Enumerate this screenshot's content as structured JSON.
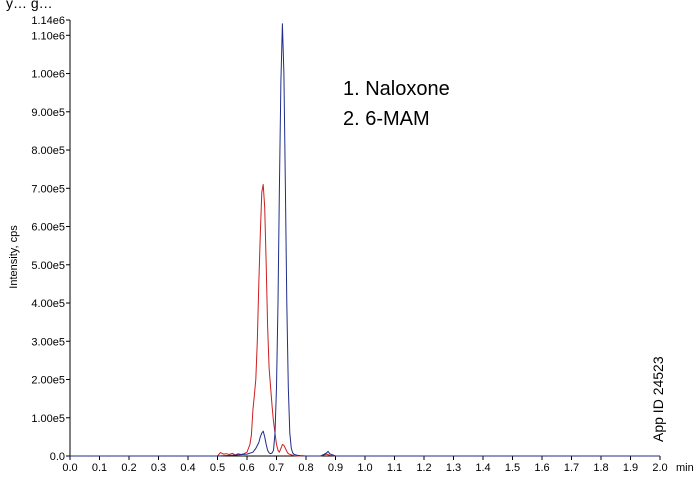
{
  "chart_data": {
    "type": "line",
    "header_text": "y… g…",
    "ylabel": "Intensity, cps",
    "x_unit_label": "min",
    "xlim": [
      0.0,
      2.0
    ],
    "ylim": [
      0,
      1140000
    ],
    "x_ticks": [
      "0.0",
      "0.1",
      "0.2",
      "0.3",
      "0.4",
      "0.5",
      "0.6",
      "0.7",
      "0.8",
      "0.9",
      "1.0",
      "1.1",
      "1.2",
      "1.3",
      "1.4",
      "1.5",
      "1.6",
      "1.7",
      "1.8",
      "1.9",
      "2.0"
    ],
    "y_ticks": [
      {
        "value": 0,
        "label": "0.0"
      },
      {
        "value": 100000,
        "label": "1.00e5"
      },
      {
        "value": 200000,
        "label": "2.00e5"
      },
      {
        "value": 300000,
        "label": "3.00e5"
      },
      {
        "value": 400000,
        "label": "4.00e5"
      },
      {
        "value": 500000,
        "label": "5.00e5"
      },
      {
        "value": 600000,
        "label": "6.00e5"
      },
      {
        "value": 700000,
        "label": "7.00e5"
      },
      {
        "value": 800000,
        "label": "8.00e5"
      },
      {
        "value": 900000,
        "label": "9.00e5"
      },
      {
        "value": 1000000,
        "label": "1.00e6"
      },
      {
        "value": 1100000,
        "label": "1.10e6"
      },
      {
        "value": 1140000,
        "label": "1.14e6"
      }
    ],
    "legend": [
      "1. Naloxone",
      "2. 6-MAM"
    ],
    "annotation": "App ID 24523",
    "series": [
      {
        "color": "#cc1f1f",
        "x": [
          0.0,
          0.1,
          0.2,
          0.3,
          0.4,
          0.45,
          0.5,
          0.51,
          0.52,
          0.53,
          0.54,
          0.55,
          0.56,
          0.57,
          0.58,
          0.59,
          0.6,
          0.61,
          0.615,
          0.62,
          0.625,
          0.63,
          0.635,
          0.64,
          0.645,
          0.65,
          0.655,
          0.66,
          0.665,
          0.67,
          0.675,
          0.68,
          0.685,
          0.69,
          0.695,
          0.7,
          0.705,
          0.71,
          0.715,
          0.72,
          0.725,
          0.73,
          0.735,
          0.74,
          0.75,
          0.76,
          0.77,
          0.8,
          0.85,
          0.86,
          0.87,
          0.88,
          0.9,
          1.0,
          1.2,
          1.4,
          1.6,
          1.8,
          2.0
        ],
        "y": [
          0,
          0,
          0,
          0,
          0,
          0,
          0,
          9000,
          5000,
          6000,
          4000,
          7000,
          3000,
          6000,
          4000,
          6000,
          10000,
          30000,
          55000,
          120000,
          160000,
          200000,
          300000,
          450000,
          580000,
          690000,
          710000,
          650000,
          500000,
          340000,
          230000,
          180000,
          130000,
          90000,
          60000,
          30000,
          15000,
          10000,
          20000,
          30000,
          28000,
          20000,
          12000,
          6000,
          3000,
          1000,
          0,
          0,
          0,
          3000,
          5000,
          2000,
          0,
          0,
          0,
          0,
          0,
          0,
          0
        ]
      },
      {
        "color": "#1f2d8a",
        "x": [
          0.0,
          0.1,
          0.2,
          0.3,
          0.4,
          0.5,
          0.55,
          0.6,
          0.62,
          0.63,
          0.64,
          0.645,
          0.65,
          0.655,
          0.66,
          0.665,
          0.67,
          0.675,
          0.68,
          0.685,
          0.69,
          0.695,
          0.7,
          0.705,
          0.71,
          0.715,
          0.72,
          0.725,
          0.73,
          0.735,
          0.74,
          0.745,
          0.75,
          0.755,
          0.76,
          0.77,
          0.78,
          0.8,
          0.85,
          0.86,
          0.87,
          0.875,
          0.88,
          0.9,
          1.0,
          1.2,
          1.4,
          1.6,
          1.8,
          2.0
        ],
        "y": [
          0,
          0,
          0,
          0,
          0,
          0,
          2000,
          5000,
          10000,
          20000,
          35000,
          50000,
          60000,
          65000,
          50000,
          30000,
          15000,
          8000,
          6000,
          8000,
          15000,
          60000,
          180000,
          400000,
          700000,
          980000,
          1130000,
          1000000,
          700000,
          400000,
          180000,
          60000,
          20000,
          8000,
          4000,
          2000,
          1000,
          0,
          0,
          4000,
          8000,
          12000,
          6000,
          0,
          0,
          0,
          0,
          0,
          0,
          0
        ]
      }
    ]
  }
}
